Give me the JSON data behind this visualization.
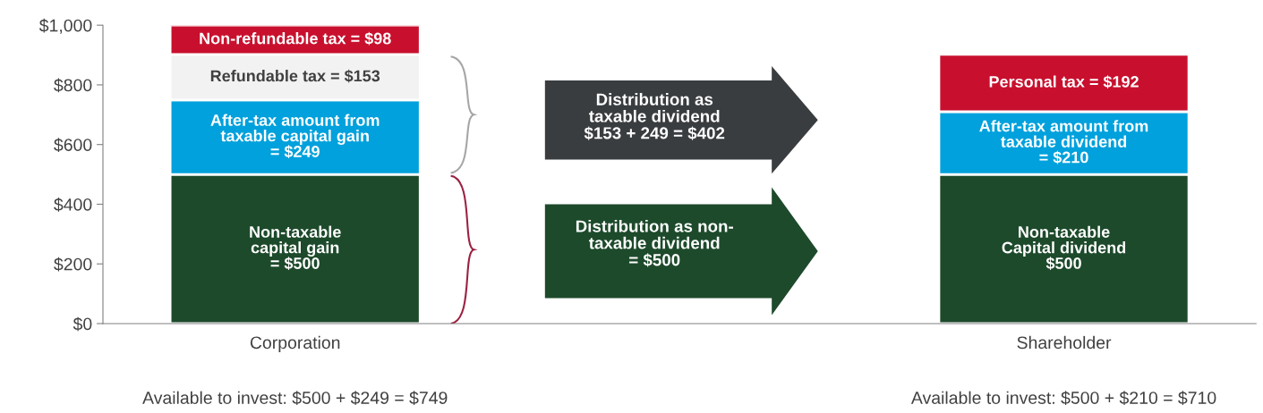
{
  "chart_data": {
    "type": "bar",
    "stacked": true,
    "categories": [
      "Corporation",
      null,
      "Shareholder"
    ],
    "series": [
      {
        "color": "#1d4a2b",
        "values": [
          500,
          null,
          500
        ],
        "value_labels": [
          "Non-taxable\ncapital gain\n= $500",
          null,
          "Non-taxable\nCapital dividend\n$500"
        ]
      },
      {
        "color": "#00a1dc",
        "values": [
          249,
          null,
          210
        ],
        "value_labels": [
          "After-tax amount from\ntaxable capital gain\n= $249",
          null,
          "After-tax amount from\ntaxable dividend\n= $210"
        ]
      },
      {
        "color": "#f2f2f2",
        "values": [
          153,
          null,
          null
        ],
        "value_labels": [
          "Refundable tax = $153",
          null,
          null
        ]
      },
      {
        "color": "#c8102e",
        "values": [
          98,
          null,
          192
        ],
        "value_labels": [
          "Non-refundable tax = $98",
          null,
          "Personal tax = $192"
        ]
      }
    ],
    "ylim": [
      0,
      1000
    ],
    "yticks": [
      {
        "value": 0,
        "label": "$0"
      },
      {
        "value": 200,
        "label": "$200"
      },
      {
        "value": 400,
        "label": "$400"
      },
      {
        "value": 600,
        "label": "$600"
      },
      {
        "value": 800,
        "label": "$800"
      },
      {
        "value": 1000,
        "label": "$1,000"
      }
    ],
    "grid": false,
    "legend": false,
    "annotations": [
      "Distribution as\ntaxable dividend\n$153 + 249 = $402",
      "Distribution as non-\ntaxable dividend\n= $500",
      "Available to invest: $500 + $249 = $749",
      "Available to invest: $500 + $210 = $710"
    ]
  }
}
